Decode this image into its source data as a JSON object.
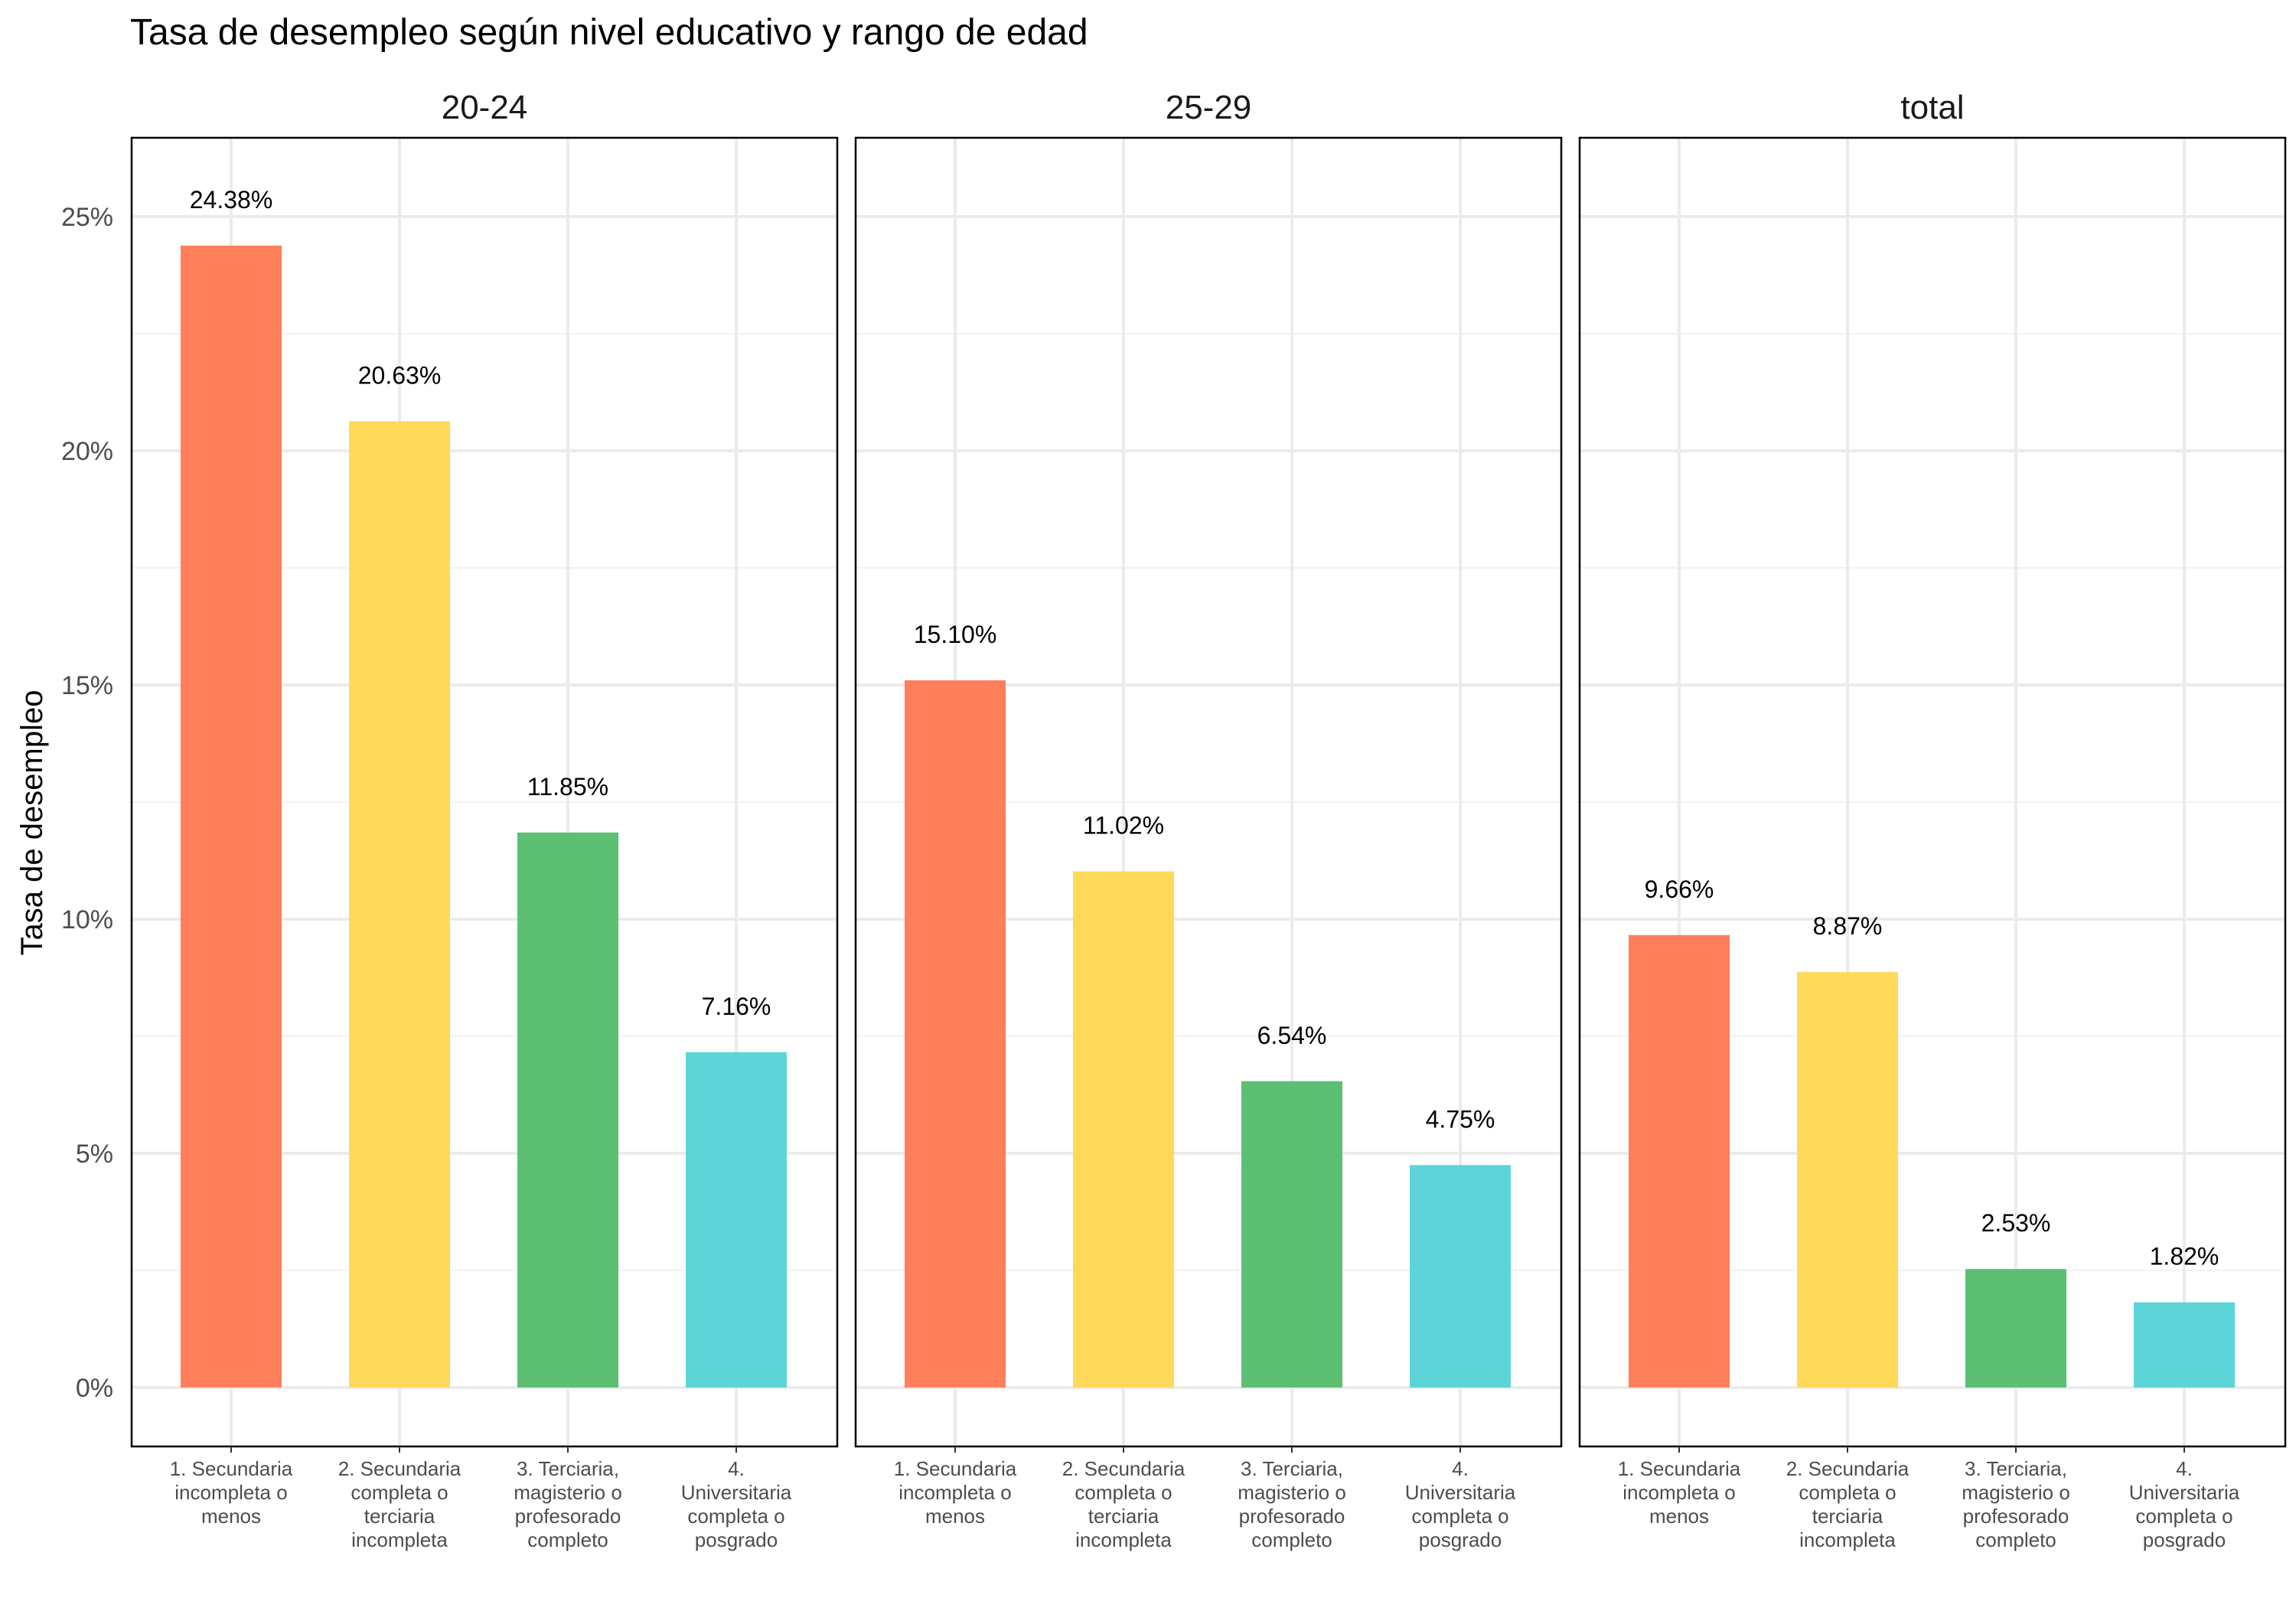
{
  "chart_data": {
    "type": "bar",
    "title": "Tasa de desempleo según nivel educativo y rango de edad",
    "xlabel": "",
    "ylabel": "Tasa de desempleo",
    "ylim": [
      0,
      26.5
    ],
    "yticks": [
      0,
      5,
      10,
      15,
      20,
      25
    ],
    "ytick_labels": [
      "0%",
      "5%",
      "10%",
      "15%",
      "20%",
      "25%"
    ],
    "grid": true,
    "legend": "none",
    "categories": [
      [
        "1. Secundaria",
        "incompleta o",
        "menos"
      ],
      [
        "2. Secundaria",
        "completa o",
        "terciaria",
        "incompleta"
      ],
      [
        "3. Terciaria,",
        "magisterio o",
        "profesorado",
        "completo"
      ],
      [
        "4.",
        "Universitaria",
        "completa o",
        "posgrado"
      ]
    ],
    "colors": [
      "#FF7F5A",
      "#FFD95A",
      "#5CBF72",
      "#5DD5D8"
    ],
    "panels": [
      {
        "facet": "20-24",
        "values": [
          24.38,
          20.63,
          11.85,
          7.16
        ],
        "labels": [
          "24.38%",
          "20.63%",
          "11.85%",
          "7.16%"
        ]
      },
      {
        "facet": "25-29",
        "values": [
          15.1,
          11.02,
          6.54,
          4.75
        ],
        "labels": [
          "15.10%",
          "11.02%",
          "6.54%",
          "4.75%"
        ]
      },
      {
        "facet": "total",
        "values": [
          9.66,
          8.87,
          2.53,
          1.82
        ],
        "labels": [
          "9.66%",
          "8.87%",
          "2.53%",
          "1.82%"
        ]
      }
    ]
  }
}
